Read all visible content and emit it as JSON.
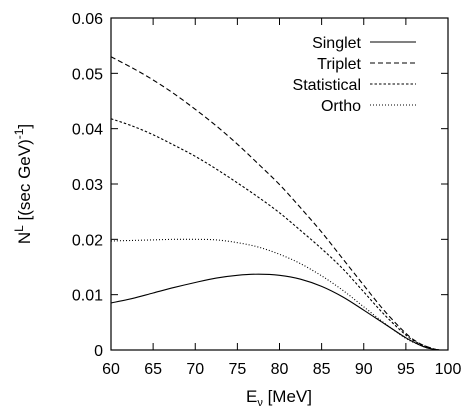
{
  "chart_data": {
    "type": "line",
    "title": "",
    "xlabel": {
      "base": "E",
      "sub": "ν",
      "rest": " [MeV]"
    },
    "ylabel": {
      "base": "N",
      "sup": "L",
      "rest": " [(sec GeV)",
      "sup2": "-1",
      "end": "]"
    },
    "xlim": [
      60,
      100
    ],
    "ylim": [
      0,
      0.06
    ],
    "xticks": [
      60,
      65,
      70,
      75,
      80,
      85,
      90,
      95,
      100
    ],
    "xtick_labels": [
      "60",
      "65",
      "70",
      "75",
      "80",
      "85",
      "90",
      "95",
      "100"
    ],
    "yticks": [
      0,
      0.01,
      0.02,
      0.03,
      0.04,
      0.05,
      0.06
    ],
    "ytick_labels": [
      "0",
      "0.01",
      "0.02",
      "0.03",
      "0.04",
      "0.05",
      "0.06"
    ],
    "grid": false,
    "legend_position": "top-right",
    "x": [
      60,
      62.5,
      65,
      67.5,
      70,
      72.5,
      75,
      77.5,
      80,
      82.5,
      85,
      87.5,
      90,
      92.5,
      95,
      96.5,
      97.5,
      98.5,
      99
    ],
    "series": [
      {
        "name": "Singlet",
        "style": "solid",
        "values": [
          0.0085,
          0.0093,
          0.0103,
          0.0113,
          0.0122,
          0.013,
          0.0135,
          0.0137,
          0.0135,
          0.0128,
          0.0115,
          0.0096,
          0.0072,
          0.0047,
          0.0022,
          0.001,
          0.0004,
          0.0001,
          0.0
        ]
      },
      {
        "name": "Triplet",
        "style": "dashed",
        "values": [
          0.053,
          0.051,
          0.0488,
          0.0463,
          0.0435,
          0.0405,
          0.0372,
          0.0336,
          0.0299,
          0.0257,
          0.0213,
          0.0165,
          0.0117,
          0.007,
          0.003,
          0.0013,
          0.0006,
          0.0001,
          0.0
        ]
      },
      {
        "name": "Statistical",
        "style": "dotted-dense",
        "values": [
          0.0418,
          0.0405,
          0.0389,
          0.037,
          0.035,
          0.0327,
          0.0302,
          0.0276,
          0.0248,
          0.0216,
          0.0183,
          0.0147,
          0.0105,
          0.0063,
          0.0027,
          0.0012,
          0.0006,
          0.0001,
          0.0
        ]
      },
      {
        "name": "Ortho",
        "style": "dotted-sparse",
        "values": [
          0.0197,
          0.0198,
          0.0199,
          0.02,
          0.02,
          0.0199,
          0.0194,
          0.0186,
          0.0173,
          0.0156,
          0.0134,
          0.0108,
          0.0078,
          0.0048,
          0.0021,
          0.001,
          0.0004,
          0.0001,
          0.0
        ]
      }
    ]
  }
}
